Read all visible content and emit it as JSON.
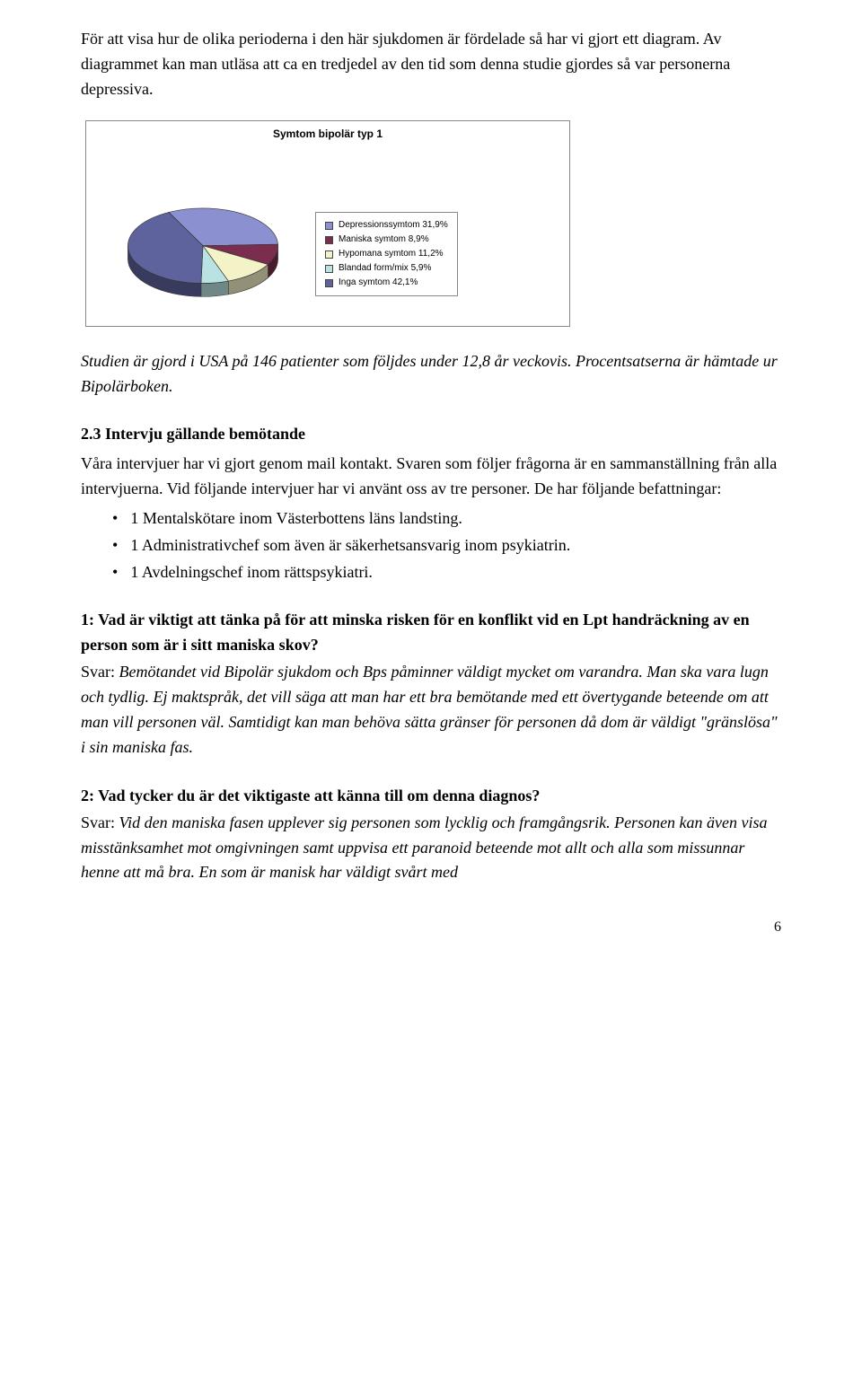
{
  "intro_paragraph": "För att visa hur de olika perioderna i den här sjukdomen är fördelade så har vi gjort ett diagram. Av diagrammet kan man utläsa att ca en tredjedel av den tid som denna studie gjordes så var personerna depressiva.",
  "chart": {
    "type": "pie",
    "title": "Symtom bipolär typ 1",
    "slices": [
      {
        "label": "Depressionssymtom 31,9%",
        "value": 31.9,
        "color": "#8a90d0",
        "swatch_fill": "#8a90d0"
      },
      {
        "label": "Maniska symtom 8,9%",
        "value": 8.9,
        "color": "#7a2d4e",
        "swatch_fill": "#7a2d4e"
      },
      {
        "label": "Hypomana symtom 11,2%",
        "value": 11.2,
        "color": "#f4f3c8",
        "swatch_fill": "#f4f3c8"
      },
      {
        "label": "Blandad form/mix 5,9%",
        "value": 5.9,
        "color": "#b9e2e2",
        "swatch_fill": "#b9e2e2"
      },
      {
        "label": "Inga symtom 42,1%",
        "value": 42.1,
        "color": "#5e639d",
        "swatch_fill": "#5e639d"
      }
    ],
    "border_color": "#888888",
    "stroke_color": "#333333",
    "background_color": "#ffffff",
    "title_fontsize": 12,
    "legend_fontsize": 10
  },
  "caption": "Studien är gjord i USA på 146 patienter som följdes under 12,8 år veckovis. Procentsatserna är hämtade ur Bipolärboken.",
  "section_heading": "2.3 Intervju gällande bemötande",
  "section_intro": "Våra intervjuer har vi gjort genom mail kontakt. Svaren som följer frågorna är en sammanställning från alla intervjuerna. Vid följande intervjuer har vi använt oss av tre personer. De har följande befattningar:",
  "bullets": [
    "1 Mentalskötare inom Västerbottens läns landsting.",
    "1 Administrativchef som även är säkerhetsansvarig inom psykiatrin.",
    "1 Avdelningschef inom rättspsykiatri."
  ],
  "qa": [
    {
      "q": "1: Vad är viktigt att tänka på för att minska risken för en konflikt vid en Lpt handräckning av en person som är i sitt maniska skov?",
      "a_label": "Svar:",
      "a": "Bemötandet vid Bipolär sjukdom och Bps påminner väldigt mycket om varandra. Man ska vara lugn och tydlig. Ej maktspråk, det vill säga att man har ett bra bemötande med ett övertygande beteende om att man vill personen väl. Samtidigt kan man behöva sätta gränser för personen då dom är väldigt \"gränslösa\" i sin maniska fas."
    },
    {
      "q": "2: Vad tycker du är det viktigaste att känna till om denna diagnos?",
      "a_label": "Svar:",
      "a": "Vid den maniska fasen upplever sig personen som lycklig och framgångsrik. Personen kan även visa misstänksamhet mot omgivningen samt uppvisa ett paranoid beteende mot allt och alla som missunnar henne att må bra. En som är manisk har väldigt svårt med"
    }
  ],
  "page_number": "6"
}
